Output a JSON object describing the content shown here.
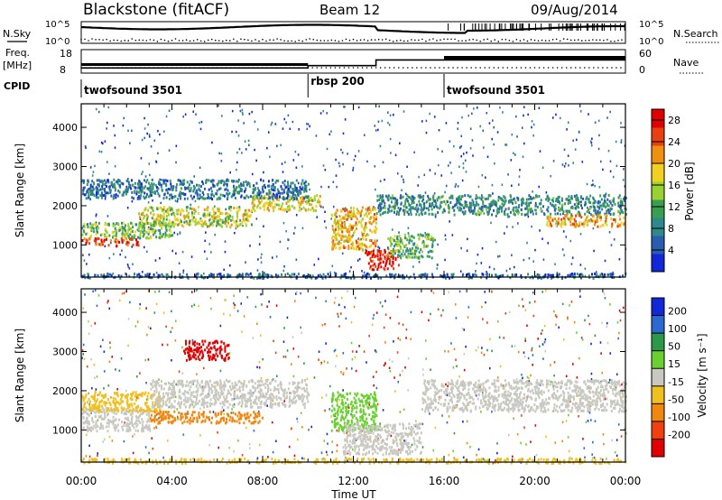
{
  "header": {
    "station": "Blackstone (fitACF)",
    "beam": "Beam 12",
    "date": "09/Aug/2014"
  },
  "top_panels": {
    "nsky_label": "N.Sky",
    "nsearch_label": "N.Search",
    "nsky_ticks": [
      "10^5",
      "10^0"
    ],
    "nsearch_ticks": [
      "10^5",
      "10^0"
    ],
    "freq_label": "Freq.",
    "freq_unit": "[MHz]",
    "freq_ticks": [
      "18",
      "8"
    ],
    "nave_label": "Nave",
    "nave_ticks": [
      "60",
      "0"
    ],
    "cpid_label": "CPID",
    "cpid_segments": [
      {
        "name": "twofsound 3501",
        "start_h": 0,
        "end_h": 10
      },
      {
        "name": "rbsp 200",
        "start_h": 10,
        "end_h": 16
      },
      {
        "name": "twofsound 3501",
        "start_h": 16,
        "end_h": 24
      }
    ],
    "freq_series": [
      {
        "start_h": 0,
        "end_h": 10,
        "mhz": 10.2
      },
      {
        "start_h": 10,
        "end_h": 13,
        "mhz": 11.2
      },
      {
        "start_h": 13,
        "end_h": 24,
        "mhz": 13.6
      }
    ]
  },
  "chart_data": [
    {
      "type": "heatmap",
      "panel": "power",
      "ylabel": "Slant Range [km]",
      "xlabel": "",
      "x_ticks": [
        "00:00",
        "04:00",
        "08:00",
        "12:00",
        "16:00",
        "20:00",
        "00:00"
      ],
      "y_ticks": [
        1000,
        2000,
        3000,
        4000
      ],
      "ylim": [
        180,
        4600
      ],
      "xlim_hours": [
        0,
        24
      ],
      "colorbar": {
        "label": "Power [dB]",
        "ticks": [
          4,
          8,
          12,
          16,
          20,
          24,
          28
        ],
        "range": [
          0,
          30
        ],
        "colors": [
          "#1028d8",
          "#2a5cb0",
          "#2e8a8a",
          "#3a9e50",
          "#9ad030",
          "#f0d020",
          "#f09010",
          "#e84010",
          "#e00000"
        ]
      },
      "echo_bands": [
        {
          "h0": 0.0,
          "h1": 2.5,
          "r0": 1000,
          "r1": 1200,
          "level": 26
        },
        {
          "h0": 0.0,
          "h1": 4.0,
          "r0": 1200,
          "r1": 1600,
          "level": 14
        },
        {
          "h0": 2.5,
          "h1": 7.5,
          "r0": 1500,
          "r1": 2000,
          "level": 16
        },
        {
          "h0": 7.5,
          "h1": 10.5,
          "r0": 1900,
          "r1": 2300,
          "level": 18
        },
        {
          "h0": 0.0,
          "h1": 10.0,
          "r0": 2200,
          "r1": 2700,
          "level": 7
        },
        {
          "h0": 11.0,
          "h1": 13.0,
          "r0": 900,
          "r1": 2000,
          "level": 20
        },
        {
          "h0": 12.5,
          "h1": 14.0,
          "r0": 400,
          "r1": 900,
          "level": 27
        },
        {
          "h0": 13.5,
          "h1": 15.5,
          "r0": 700,
          "r1": 1300,
          "level": 12
        },
        {
          "h0": 13.0,
          "h1": 24.0,
          "r0": 1800,
          "r1": 2300,
          "level": 9
        },
        {
          "h0": 20.5,
          "h1": 24.0,
          "r0": 1500,
          "r1": 1800,
          "level": 20
        },
        {
          "h0": 0.0,
          "h1": 24.0,
          "r0": 180,
          "r1": 300,
          "level": 6
        }
      ]
    },
    {
      "type": "heatmap",
      "panel": "velocity",
      "ylabel": "Slant Range [km]",
      "xlabel": "Time UT",
      "x_ticks": [
        "00:00",
        "04:00",
        "08:00",
        "12:00",
        "16:00",
        "20:00",
        "00:00"
      ],
      "y_ticks": [
        1000,
        2000,
        3000,
        4000
      ],
      "ylim": [
        180,
        4600
      ],
      "xlim_hours": [
        0,
        24
      ],
      "colorbar": {
        "label": "Velocity [m s⁻¹]",
        "ticks": [
          200,
          100,
          50,
          15,
          -15,
          -50,
          -100,
          -200
        ],
        "colors": [
          "#1028d8",
          "#2a6ad0",
          "#2a9a48",
          "#6ad030",
          "#c8c8c0",
          "#f0c020",
          "#f08810",
          "#f04010",
          "#e00000"
        ]
      },
      "echo_bands": [
        {
          "h0": 0.0,
          "h1": 3.0,
          "r0": 1000,
          "r1": 1600,
          "color": "#c8c8c0"
        },
        {
          "h0": 0.0,
          "h1": 3.5,
          "r0": 1500,
          "r1": 2000,
          "color": "#f0c020"
        },
        {
          "h0": 3.0,
          "h1": 10.0,
          "r0": 1600,
          "r1": 2300,
          "color": "#c8c8c0"
        },
        {
          "h0": 4.5,
          "h1": 6.5,
          "r0": 2800,
          "r1": 3300,
          "color": "#e00000"
        },
        {
          "h0": 3.0,
          "h1": 8.0,
          "r0": 1200,
          "r1": 1500,
          "color": "#f08810"
        },
        {
          "h0": 11.0,
          "h1": 13.0,
          "r0": 1000,
          "r1": 2000,
          "color": "#6ad030"
        },
        {
          "h0": 11.5,
          "h1": 15.0,
          "r0": 400,
          "r1": 1200,
          "color": "#c8c8c0"
        },
        {
          "h0": 15.0,
          "h1": 24.0,
          "r0": 1500,
          "r1": 2300,
          "color": "#c8c8c0"
        },
        {
          "h0": 0.0,
          "h1": 24.0,
          "r0": 180,
          "r1": 300,
          "color": "#f0c020"
        }
      ]
    }
  ]
}
